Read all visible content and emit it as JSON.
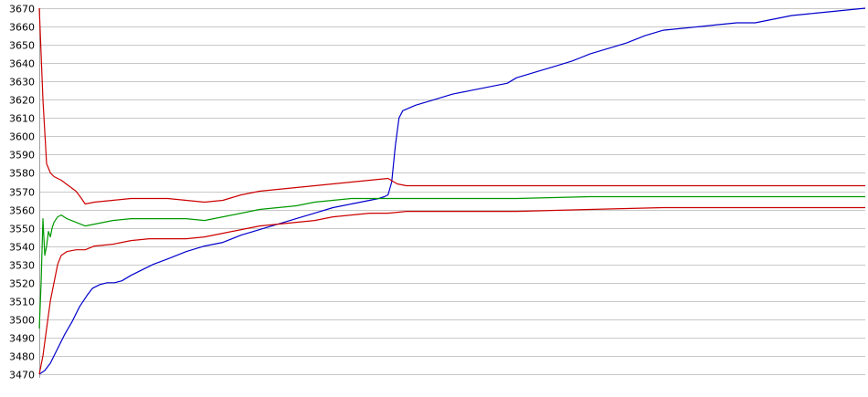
{
  "chart_data": {
    "type": "line",
    "title": "",
    "xlabel": "",
    "ylabel": "",
    "ylim": [
      3470,
      3670
    ],
    "xlim": [
      0,
      450
    ],
    "grid": true,
    "legend": "none",
    "y_ticks": [
      "3670",
      "3660",
      "3650",
      "3640",
      "3630",
      "3620",
      "3610",
      "3600",
      "3590",
      "3580",
      "3570",
      "3560",
      "3550",
      "3540",
      "3530",
      "3520",
      "3510",
      "3500",
      "3490",
      "3480",
      "3470"
    ],
    "series": [
      {
        "color": "#0000cc",
        "points": [
          [
            0,
            3470
          ],
          [
            3,
            3472
          ],
          [
            6,
            3476
          ],
          [
            10,
            3484
          ],
          [
            14,
            3492
          ],
          [
            18,
            3499
          ],
          [
            22,
            3507
          ],
          [
            26,
            3513
          ],
          [
            29,
            3517
          ],
          [
            33,
            3519
          ],
          [
            37,
            3520
          ],
          [
            41,
            3520
          ],
          [
            45,
            3521
          ],
          [
            50,
            3524
          ],
          [
            56,
            3527
          ],
          [
            62,
            3530
          ],
          [
            70,
            3533
          ],
          [
            80,
            3537
          ],
          [
            90,
            3540
          ],
          [
            100,
            3542
          ],
          [
            110,
            3546
          ],
          [
            120,
            3549
          ],
          [
            130,
            3552
          ],
          [
            140,
            3555
          ],
          [
            150,
            3558
          ],
          [
            160,
            3561
          ],
          [
            170,
            3563
          ],
          [
            180,
            3565
          ],
          [
            185,
            3566
          ],
          [
            188,
            3567
          ],
          [
            190,
            3568
          ],
          [
            192,
            3575
          ],
          [
            194,
            3595
          ],
          [
            196,
            3610
          ],
          [
            198,
            3614
          ],
          [
            205,
            3617
          ],
          [
            215,
            3620
          ],
          [
            225,
            3623
          ],
          [
            235,
            3625
          ],
          [
            245,
            3627
          ],
          [
            255,
            3629
          ],
          [
            260,
            3632
          ],
          [
            270,
            3635
          ],
          [
            280,
            3638
          ],
          [
            290,
            3641
          ],
          [
            300,
            3645
          ],
          [
            310,
            3648
          ],
          [
            320,
            3651
          ],
          [
            330,
            3655
          ],
          [
            340,
            3658
          ],
          [
            350,
            3659
          ],
          [
            360,
            3660
          ],
          [
            370,
            3661
          ],
          [
            380,
            3662
          ],
          [
            390,
            3662
          ],
          [
            400,
            3664
          ],
          [
            410,
            3666
          ],
          [
            420,
            3667
          ],
          [
            430,
            3668
          ],
          [
            440,
            3669
          ],
          [
            450,
            3670
          ]
        ]
      },
      {
        "color": "#cc0000",
        "points": [
          [
            0,
            3670
          ],
          [
            2,
            3620
          ],
          [
            4,
            3585
          ],
          [
            6,
            3580
          ],
          [
            8,
            3578
          ],
          [
            12,
            3576
          ],
          [
            16,
            3573
          ],
          [
            20,
            3570
          ],
          [
            23,
            3566
          ],
          [
            25,
            3563
          ],
          [
            30,
            3564
          ],
          [
            40,
            3565
          ],
          [
            50,
            3566
          ],
          [
            60,
            3566
          ],
          [
            70,
            3566
          ],
          [
            80,
            3565
          ],
          [
            90,
            3564
          ],
          [
            100,
            3565
          ],
          [
            110,
            3568
          ],
          [
            120,
            3570
          ],
          [
            130,
            3571
          ],
          [
            140,
            3572
          ],
          [
            150,
            3573
          ],
          [
            160,
            3574
          ],
          [
            170,
            3575
          ],
          [
            180,
            3576
          ],
          [
            190,
            3577
          ],
          [
            195,
            3574
          ],
          [
            200,
            3573
          ],
          [
            210,
            3573
          ],
          [
            230,
            3573
          ],
          [
            260,
            3573
          ],
          [
            300,
            3573
          ],
          [
            340,
            3573
          ],
          [
            380,
            3573
          ],
          [
            420,
            3573
          ],
          [
            450,
            3573
          ]
        ]
      },
      {
        "color": "#009900",
        "points": [
          [
            0,
            3495
          ],
          [
            1,
            3520
          ],
          [
            2,
            3555
          ],
          [
            3,
            3535
          ],
          [
            4,
            3540
          ],
          [
            5,
            3548
          ],
          [
            6,
            3545
          ],
          [
            7,
            3550
          ],
          [
            8,
            3553
          ],
          [
            10,
            3556
          ],
          [
            12,
            3557
          ],
          [
            15,
            3555
          ],
          [
            20,
            3553
          ],
          [
            25,
            3551
          ],
          [
            30,
            3552
          ],
          [
            40,
            3554
          ],
          [
            50,
            3555
          ],
          [
            60,
            3555
          ],
          [
            70,
            3555
          ],
          [
            80,
            3555
          ],
          [
            90,
            3554
          ],
          [
            100,
            3556
          ],
          [
            110,
            3558
          ],
          [
            120,
            3560
          ],
          [
            130,
            3561
          ],
          [
            140,
            3562
          ],
          [
            150,
            3564
          ],
          [
            160,
            3565
          ],
          [
            170,
            3566
          ],
          [
            180,
            3566
          ],
          [
            190,
            3566
          ],
          [
            200,
            3566
          ],
          [
            230,
            3566
          ],
          [
            260,
            3566
          ],
          [
            300,
            3567
          ],
          [
            340,
            3567
          ],
          [
            380,
            3567
          ],
          [
            420,
            3567
          ],
          [
            450,
            3567
          ]
        ]
      },
      {
        "color": "#cc0000",
        "points": [
          [
            0,
            3470
          ],
          [
            2,
            3480
          ],
          [
            4,
            3495
          ],
          [
            6,
            3510
          ],
          [
            8,
            3520
          ],
          [
            10,
            3530
          ],
          [
            12,
            3535
          ],
          [
            15,
            3537
          ],
          [
            20,
            3538
          ],
          [
            25,
            3538
          ],
          [
            30,
            3540
          ],
          [
            40,
            3541
          ],
          [
            50,
            3543
          ],
          [
            60,
            3544
          ],
          [
            70,
            3544
          ],
          [
            80,
            3544
          ],
          [
            90,
            3545
          ],
          [
            100,
            3547
          ],
          [
            110,
            3549
          ],
          [
            120,
            3551
          ],
          [
            130,
            3552
          ],
          [
            140,
            3553
          ],
          [
            150,
            3554
          ],
          [
            160,
            3556
          ],
          [
            170,
            3557
          ],
          [
            180,
            3558
          ],
          [
            190,
            3558
          ],
          [
            200,
            3559
          ],
          [
            230,
            3559
          ],
          [
            260,
            3559
          ],
          [
            300,
            3560
          ],
          [
            340,
            3561
          ],
          [
            380,
            3561
          ],
          [
            420,
            3561
          ],
          [
            450,
            3561
          ]
        ]
      }
    ]
  }
}
